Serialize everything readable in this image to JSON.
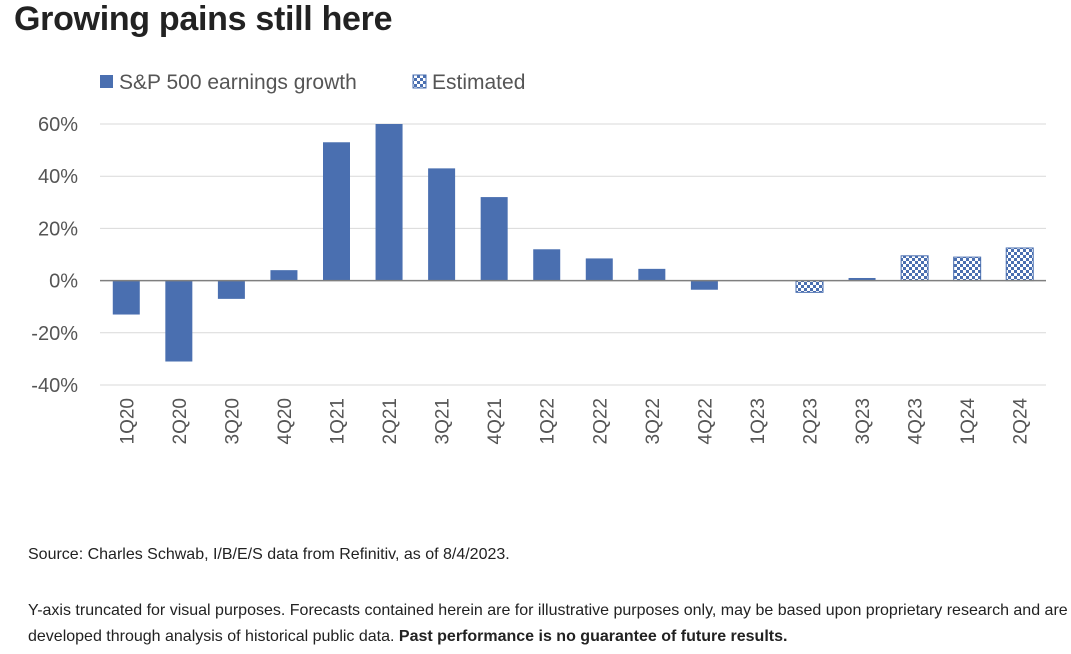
{
  "title": "Growing pains still here",
  "chart_data": {
    "type": "bar",
    "categories": [
      "1Q20",
      "2Q20",
      "3Q20",
      "4Q20",
      "1Q21",
      "2Q21",
      "3Q21",
      "4Q21",
      "1Q22",
      "2Q22",
      "3Q22",
      "4Q22",
      "1Q23",
      "2Q23",
      "3Q23",
      "4Q23",
      "1Q24",
      "2Q24"
    ],
    "series": [
      {
        "name": "S&P 500 earnings growth",
        "values": [
          -13,
          -31,
          -7,
          4,
          53,
          60,
          43,
          32,
          12,
          8.5,
          4.5,
          -3.5,
          0,
          null,
          1,
          null,
          null,
          null
        ]
      },
      {
        "name": "Estimated",
        "values": [
          null,
          null,
          null,
          null,
          null,
          null,
          null,
          null,
          null,
          null,
          null,
          null,
          null,
          -4.5,
          null,
          9.5,
          9,
          12.5
        ]
      }
    ],
    "yticks": [
      "60%",
      "40%",
      "20%",
      "0%",
      "-20%",
      "-40%"
    ],
    "ytick_values": [
      60,
      40,
      20,
      0,
      -20,
      -40
    ],
    "ylim": [
      -40,
      60
    ],
    "grid": true,
    "legend_position": "top",
    "colors": {
      "actual": "#4a6fb0",
      "estimated_a": "#4a6fb0",
      "estimated_b": "#ffffff",
      "grid": "#d9d9d9",
      "zero_line": "#7f7f7f",
      "ticks": "#555555"
    }
  },
  "footer": {
    "source": "Source: Charles Schwab, I/B/E/S data from Refinitiv, as of 8/4/2023.",
    "note": "Y-axis truncated for visual purposes. Forecasts contained herein are for illustrative purposes only, may be based upon proprietary research and are developed through analysis of historical public data.",
    "note_bold": "Past performance is no guarantee of future results."
  }
}
